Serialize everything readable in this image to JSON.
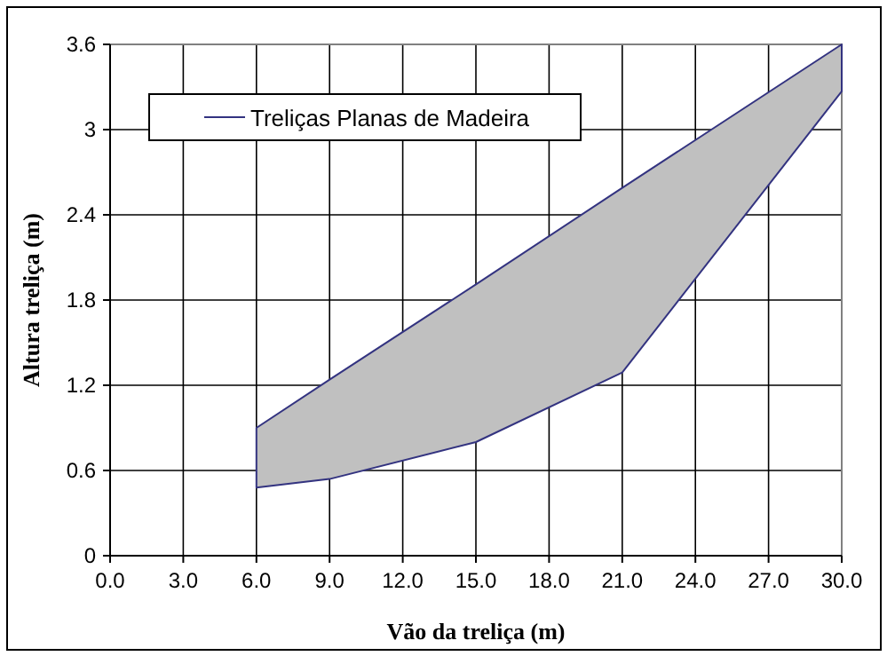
{
  "chart_data": {
    "type": "line",
    "xlabel": "Vão da treliça (m)",
    "ylabel": "Altura treliça (m)",
    "x": [
      6,
      9,
      15,
      21,
      30
    ],
    "series": [
      {
        "name": "Treliças Planas de Madeira",
        "color": "#333380",
        "values": [
          null,
          null,
          null,
          null,
          null
        ],
        "lower": [
          0.48,
          0.54,
          0.8,
          1.29,
          3.27
        ],
        "upper": [
          0.9,
          1.24,
          1.91,
          2.59,
          3.6
        ]
      }
    ],
    "xlim": [
      0,
      30
    ],
    "xticks": [
      {
        "value": 0,
        "label": "0.0"
      },
      {
        "value": 3,
        "label": "3.0"
      },
      {
        "value": 6,
        "label": "6.0"
      },
      {
        "value": 9,
        "label": "9.0"
      },
      {
        "value": 12,
        "label": "12.0"
      },
      {
        "value": 15,
        "label": "15.0"
      },
      {
        "value": 18,
        "label": "18.0"
      },
      {
        "value": 21,
        "label": "21.0"
      },
      {
        "value": 24,
        "label": "24.0"
      },
      {
        "value": 27,
        "label": "27.0"
      },
      {
        "value": 30,
        "label": "30.0"
      }
    ],
    "ylim": [
      0,
      3.6
    ],
    "yticks": [
      0,
      0.6,
      1.2,
      1.8,
      2.4,
      3,
      3.6
    ],
    "grid": true,
    "legend": "top left"
  }
}
